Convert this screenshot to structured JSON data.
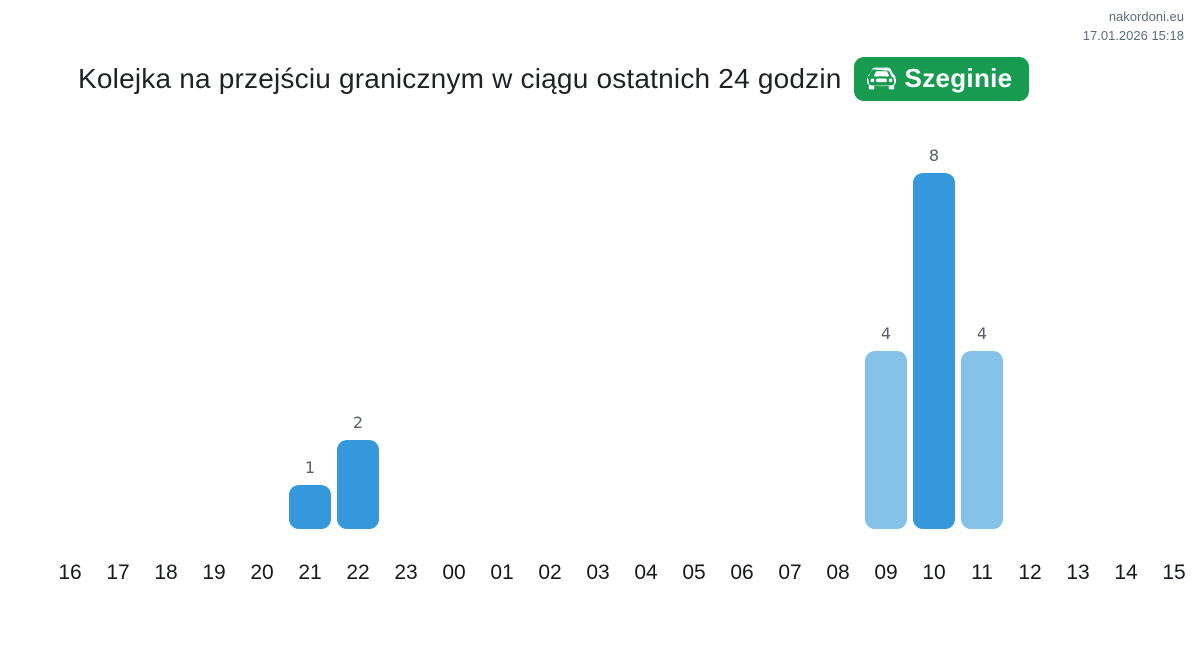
{
  "header": {
    "site": "nakordoni.eu",
    "timestamp": "17.01.2026 15:18",
    "title": "Kolejka na przejściu granicznym w ciągu ostatnich 24 godzin",
    "badge": {
      "label": "Szeginie",
      "icon": "car-front-icon",
      "background_color": "#169b51",
      "text_color": "#ffffff"
    }
  },
  "chart_data": {
    "type": "bar",
    "title": "Kolejka na przejściu granicznym w ciągu ostatnich 24 godzin",
    "xlabel": "",
    "ylabel": "",
    "categories": [
      "16",
      "17",
      "18",
      "19",
      "20",
      "21",
      "22",
      "23",
      "00",
      "01",
      "02",
      "03",
      "04",
      "05",
      "06",
      "07",
      "08",
      "09",
      "10",
      "11",
      "12",
      "13",
      "14",
      "15"
    ],
    "values": [
      0,
      0,
      0,
      0,
      0,
      1,
      2,
      0,
      0,
      0,
      0,
      0,
      0,
      0,
      0,
      0,
      0,
      4,
      8,
      4,
      0,
      0,
      0,
      0
    ],
    "bar_colors": [
      null,
      null,
      null,
      null,
      null,
      "#3498db",
      "#3498db",
      null,
      null,
      null,
      null,
      null,
      null,
      null,
      null,
      null,
      null,
      "#85c1e9",
      "#3498db",
      "#85c1e9",
      null,
      null,
      null,
      null
    ],
    "value_labels": [
      null,
      null,
      null,
      null,
      null,
      "1",
      "2",
      null,
      null,
      null,
      null,
      null,
      null,
      null,
      null,
      null,
      null,
      "4",
      "8",
      "4",
      null,
      null,
      null,
      null
    ],
    "ylim": [
      0,
      9
    ],
    "grid": false,
    "legend": null,
    "palette": {
      "bar_dark_blue": "#3498db",
      "bar_light_blue": "#85c1e9",
      "axis_label_color": "#15181c",
      "value_label_color": "#575e66"
    }
  }
}
